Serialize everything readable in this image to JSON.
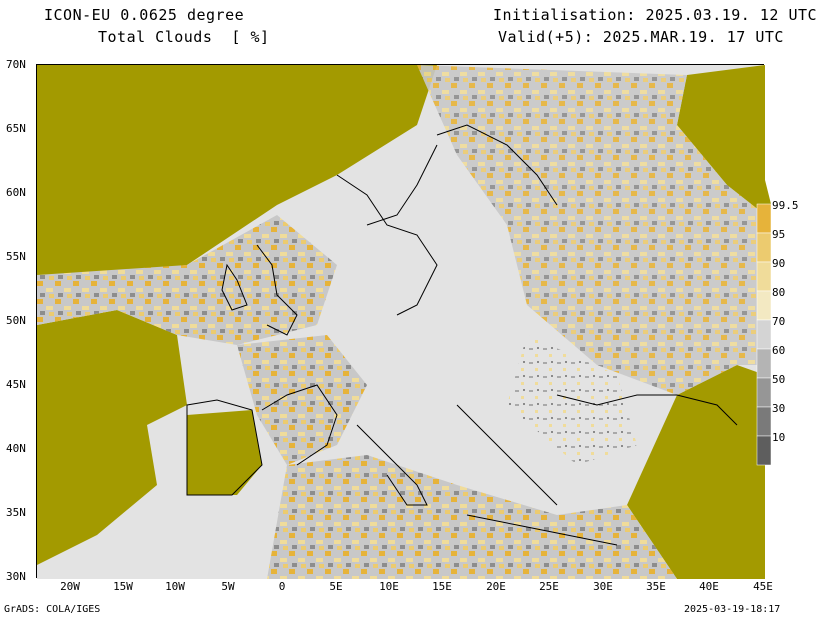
{
  "header": {
    "model": "ICON-EU 0.0625 degree",
    "field": "Total Clouds  [ %]",
    "init": "Initialisation: 2025.03.19. 12 UTC",
    "valid": "Valid(+5): 2025.MAR.19. 17 UTC"
  },
  "axes": {
    "lat_labels": [
      "70N",
      "65N",
      "60N",
      "55N",
      "50N",
      "45N",
      "40N",
      "35N",
      "30N"
    ],
    "lon_labels": [
      "20W",
      "15W",
      "10W",
      "5W",
      "0",
      "5E",
      "10E",
      "15E",
      "20E",
      "25E",
      "30E",
      "35E",
      "40E",
      "45E"
    ]
  },
  "colorbar": {
    "labels": [
      "99.5",
      "95",
      "90",
      "80",
      "70",
      "60",
      "50",
      "30",
      "10"
    ],
    "colors": [
      "#a39a00",
      "#e6b33a",
      "#eccb6f",
      "#f0dc9a",
      "#f3e9c2",
      "#d4d4d4",
      "#b4b4b4",
      "#969696",
      "#7a7a7a",
      "#5e5e5e"
    ]
  },
  "footer": {
    "left": "GrADS: COLA/IGES",
    "right": "2025-03-19-18:17"
  }
}
